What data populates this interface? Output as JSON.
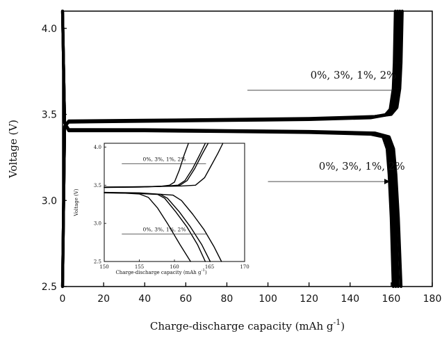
{
  "chart_data": [
    {
      "type": "line",
      "xlabel": "Charge-discharge capacity (mAh g",
      "xlabel_sup": "-1",
      "xlabel_end": ")",
      "ylabel": "Voltage (V)",
      "xlim": [
        0,
        180
      ],
      "ylim": [
        2.5,
        4.1
      ],
      "x_ticks": [
        "0",
        "20",
        "40",
        "60",
        "80",
        "100",
        "120",
        "140",
        "160",
        "180"
      ],
      "y_ticks": [
        "2.5",
        "3.0",
        "3.5",
        "4.0"
      ],
      "grid": false,
      "legend": "none",
      "line_color": "#000000",
      "annotations": [
        {
          "text": "0%,  3%,  1%,  2%",
          "curve": "charge",
          "arrow_from": [
            90,
            3.64
          ],
          "arrow_to": [
            163,
            3.64
          ]
        },
        {
          "text": "0%,  3%,  1%,  2%",
          "curve": "discharge",
          "arrow_from": [
            100,
            3.11
          ],
          "arrow_to": [
            159,
            3.11
          ]
        }
      ],
      "series": [
        {
          "name": "0%",
          "charge": [
            [
              0,
              2.5
            ],
            [
              1,
              3.43
            ],
            [
              3,
              3.455
            ],
            [
              40,
              3.46
            ],
            [
              80,
              3.465
            ],
            [
              120,
              3.47
            ],
            [
              150,
              3.48
            ],
            [
              157,
              3.495
            ],
            [
              159.5,
              3.53
            ],
            [
              161,
              3.65
            ],
            [
              161.5,
              3.8
            ],
            [
              162,
              4.1
            ]
          ],
          "discharge": [
            [
              0,
              4.1
            ],
            [
              1,
              3.45
            ],
            [
              3,
              3.405
            ],
            [
              40,
              3.405
            ],
            [
              80,
              3.4
            ],
            [
              120,
              3.395
            ],
            [
              150,
              3.385
            ],
            [
              156,
              3.37
            ],
            [
              158,
              3.3
            ],
            [
              159,
              3.15
            ],
            [
              160,
              2.9
            ],
            [
              161,
              2.5
            ]
          ]
        },
        {
          "name": "3%",
          "charge": [
            [
              0,
              2.5
            ],
            [
              1,
              3.43
            ],
            [
              3,
              3.458
            ],
            [
              40,
              3.462
            ],
            [
              80,
              3.467
            ],
            [
              120,
              3.472
            ],
            [
              150,
              3.483
            ],
            [
              158,
              3.5
            ],
            [
              160.5,
              3.54
            ],
            [
              162,
              3.65
            ],
            [
              162.6,
              3.8
            ],
            [
              163.1,
              4.1
            ]
          ],
          "discharge": [
            [
              0,
              4.1
            ],
            [
              1,
              3.45
            ],
            [
              3,
              3.408
            ],
            [
              40,
              3.407
            ],
            [
              80,
              3.402
            ],
            [
              120,
              3.397
            ],
            [
              150,
              3.388
            ],
            [
              157,
              3.37
            ],
            [
              159,
              3.3
            ],
            [
              160,
              3.15
            ],
            [
              161.1,
              2.9
            ],
            [
              162.2,
              2.5
            ]
          ]
        },
        {
          "name": "1%",
          "charge": [
            [
              0,
              2.5
            ],
            [
              1,
              3.43
            ],
            [
              3,
              3.46
            ],
            [
              40,
              3.464
            ],
            [
              80,
              3.469
            ],
            [
              120,
              3.474
            ],
            [
              151,
              3.485
            ],
            [
              159,
              3.5
            ],
            [
              161.6,
              3.54
            ],
            [
              163,
              3.65
            ],
            [
              163.6,
              3.8
            ],
            [
              164.2,
              4.1
            ]
          ],
          "discharge": [
            [
              0,
              4.1
            ],
            [
              1,
              3.45
            ],
            [
              3,
              3.41
            ],
            [
              40,
              3.409
            ],
            [
              80,
              3.404
            ],
            [
              120,
              3.399
            ],
            [
              151,
              3.39
            ],
            [
              158,
              3.37
            ],
            [
              160,
              3.3
            ],
            [
              161.1,
              3.15
            ],
            [
              162.2,
              2.9
            ],
            [
              163.4,
              2.5
            ]
          ]
        },
        {
          "name": "2%",
          "charge": [
            [
              0,
              2.5
            ],
            [
              1,
              3.43
            ],
            [
              3,
              3.462
            ],
            [
              40,
              3.466
            ],
            [
              80,
              3.471
            ],
            [
              120,
              3.476
            ],
            [
              152,
              3.488
            ],
            [
              160,
              3.5
            ],
            [
              162.8,
              3.54
            ],
            [
              164.2,
              3.65
            ],
            [
              164.8,
              3.8
            ],
            [
              165.4,
              4.1
            ]
          ],
          "discharge": [
            [
              0,
              4.1
            ],
            [
              1,
              3.45
            ],
            [
              3,
              3.412
            ],
            [
              40,
              3.411
            ],
            [
              80,
              3.406
            ],
            [
              120,
              3.401
            ],
            [
              152,
              3.392
            ],
            [
              159,
              3.37
            ],
            [
              161.2,
              3.3
            ],
            [
              162.3,
              3.15
            ],
            [
              163.5,
              2.9
            ],
            [
              164.8,
              2.5
            ]
          ]
        }
      ]
    },
    {
      "type": "line",
      "inset": true,
      "xlabel": "Charge-discharge capacity (mAh g",
      "xlabel_sup": "-1",
      "xlabel_end": ")",
      "ylabel": "Voltage (V)",
      "xlim": [
        150,
        170
      ],
      "ylim": [
        2.5,
        4.05
      ],
      "x_ticks": [
        "150",
        "155",
        "160",
        "165",
        "170"
      ],
      "y_ticks": [
        "2.5",
        "3.0",
        "3.5",
        "4.0"
      ],
      "grid": false,
      "legend": "none",
      "annotations": [
        {
          "text": "0%,  3%,  1%,  2%",
          "curve": "charge",
          "line_from": [
            152.5,
            3.78
          ],
          "line_to": [
            164.5,
            3.78
          ]
        },
        {
          "text": "0%,  3%,  1%,  2%",
          "curve": "discharge",
          "line_from": [
            152.5,
            2.86
          ],
          "line_to": [
            164.5,
            2.86
          ]
        }
      ],
      "series": [
        {
          "name": "0%",
          "charge": [
            [
              150,
              3.47
            ],
            [
              155,
              3.475
            ],
            [
              158,
              3.485
            ],
            [
              159.3,
              3.5
            ],
            [
              160,
              3.54
            ],
            [
              160.7,
              3.7
            ],
            [
              161.4,
              3.9
            ],
            [
              162,
              4.05
            ]
          ],
          "discharge": [
            [
              150,
              3.4
            ],
            [
              153,
              3.395
            ],
            [
              155,
              3.385
            ],
            [
              156.3,
              3.34
            ],
            [
              157.6,
              3.2
            ],
            [
              159,
              3.0
            ],
            [
              160.8,
              2.72
            ],
            [
              162.3,
              2.5
            ]
          ]
        },
        {
          "name": "3%",
          "charge": [
            [
              150,
              3.472
            ],
            [
              155,
              3.477
            ],
            [
              159,
              3.49
            ],
            [
              160.5,
              3.5
            ],
            [
              161.5,
              3.56
            ],
            [
              162.6,
              3.72
            ],
            [
              163.6,
              3.9
            ],
            [
              164.4,
              4.05
            ]
          ],
          "discharge": [
            [
              150,
              3.402
            ],
            [
              154,
              3.395
            ],
            [
              157.6,
              3.38
            ],
            [
              158.6,
              3.33
            ],
            [
              160.2,
              3.15
            ],
            [
              161.8,
              2.95
            ],
            [
              163.3,
              2.72
            ],
            [
              164.4,
              2.5
            ]
          ]
        },
        {
          "name": "1%",
          "charge": [
            [
              150,
              3.474
            ],
            [
              156,
              3.48
            ],
            [
              159.3,
              3.49
            ],
            [
              160.8,
              3.5
            ],
            [
              161.8,
              3.56
            ],
            [
              162.9,
              3.72
            ],
            [
              163.9,
              3.9
            ],
            [
              164.8,
              4.05
            ]
          ],
          "discharge": [
            [
              150,
              3.404
            ],
            [
              154,
              3.398
            ],
            [
              158,
              3.38
            ],
            [
              159,
              3.33
            ],
            [
              160.7,
              3.15
            ],
            [
              162.3,
              2.95
            ],
            [
              163.9,
              2.72
            ],
            [
              165.1,
              2.5
            ]
          ]
        },
        {
          "name": "2%",
          "charge": [
            [
              150,
              3.476
            ],
            [
              157,
              3.482
            ],
            [
              161,
              3.49
            ],
            [
              163,
              3.5
            ],
            [
              164.3,
              3.6
            ],
            [
              165.2,
              3.75
            ],
            [
              166.2,
              3.92
            ],
            [
              166.9,
              4.05
            ]
          ],
          "discharge": [
            [
              150,
              3.406
            ],
            [
              155,
              3.4
            ],
            [
              159.8,
              3.37
            ],
            [
              161,
              3.3
            ],
            [
              162.6,
              3.12
            ],
            [
              164.2,
              2.92
            ],
            [
              165.6,
              2.7
            ],
            [
              166.7,
              2.5
            ]
          ]
        }
      ]
    }
  ]
}
